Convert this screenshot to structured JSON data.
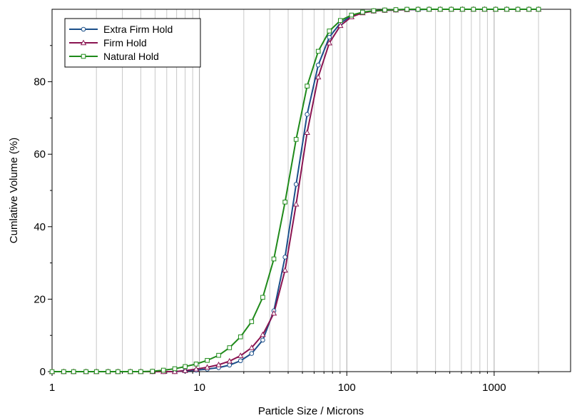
{
  "chart_data": {
    "type": "line",
    "title": "",
    "xlabel": "Particle Size / Microns",
    "ylabel": "Cumlative Volume (%)",
    "xscale": "log",
    "xlim": [
      1,
      3300
    ],
    "ylim": [
      0,
      100
    ],
    "xticks": [
      1,
      10,
      100,
      1000
    ],
    "xtick_labels": [
      "1",
      "10",
      "100",
      "1000"
    ],
    "yticks": [
      0,
      20,
      40,
      60,
      80
    ],
    "ytick_labels": [
      "0",
      "20",
      "40",
      "60",
      "80"
    ],
    "grid": "vertical",
    "legend_position": "top-left",
    "colors": {
      "extra_firm": "#1b4f8a",
      "firm": "#8a1451",
      "natural": "#1f8a1a",
      "grid": "#c8c8c8"
    },
    "x": [
      1.0,
      1.2,
      1.4,
      1.7,
      2.0,
      2.4,
      2.8,
      3.4,
      4.0,
      4.8,
      5.7,
      6.8,
      8.0,
      9.5,
      11.3,
      13.5,
      16.0,
      19.0,
      22.6,
      26.9,
      32.0,
      38.1,
      45.3,
      53.8,
      64.0,
      76.1,
      90.5,
      107.6,
      128.0,
      152.2,
      181.0,
      215.3,
      256.0,
      304.4,
      362.0,
      430.5,
      512.0,
      608.9,
      724.1,
      861.1,
      1024,
      1217.8,
      1448.2,
      1722.2,
      2000
    ],
    "series": [
      {
        "name": "Extra Firm Hold",
        "marker": "circle",
        "values": [
          0,
          0,
          0,
          0,
          0,
          0,
          0,
          0,
          0,
          0,
          0,
          0,
          0.2,
          0.4,
          0.7,
          1.1,
          1.8,
          3.0,
          5.0,
          8.7,
          16.8,
          31.6,
          51.7,
          71.0,
          84.6,
          92.3,
          96.2,
          98.2,
          99.1,
          99.5,
          99.7,
          99.8,
          99.9,
          99.9,
          100,
          100,
          100,
          100,
          100,
          100,
          100,
          100,
          100,
          100,
          100
        ]
      },
      {
        "name": "Firm Hold",
        "marker": "triangle",
        "values": [
          0,
          0,
          0,
          0,
          0,
          0,
          0,
          0,
          0,
          0,
          0,
          0,
          0.3,
          0.7,
          1.2,
          1.9,
          2.9,
          4.4,
          6.6,
          10.2,
          16.1,
          28.0,
          46.2,
          66.0,
          81.3,
          90.7,
          95.5,
          97.9,
          99.0,
          99.5,
          99.7,
          99.8,
          99.9,
          100,
          100,
          100,
          100,
          100,
          100,
          100,
          100,
          100,
          100,
          100,
          100
        ]
      },
      {
        "name": "Natural Hold",
        "marker": "square",
        "values": [
          0,
          0,
          0,
          0,
          0,
          0,
          0,
          0,
          0,
          0.1,
          0.4,
          0.8,
          1.4,
          2.1,
          3.1,
          4.5,
          6.6,
          9.6,
          13.8,
          20.5,
          31.1,
          46.8,
          64.1,
          78.8,
          88.4,
          94.0,
          96.9,
          98.4,
          99.2,
          99.6,
          99.8,
          99.9,
          100,
          100,
          100,
          100,
          100,
          100,
          100,
          100,
          100,
          100,
          100,
          100,
          100
        ]
      }
    ]
  }
}
